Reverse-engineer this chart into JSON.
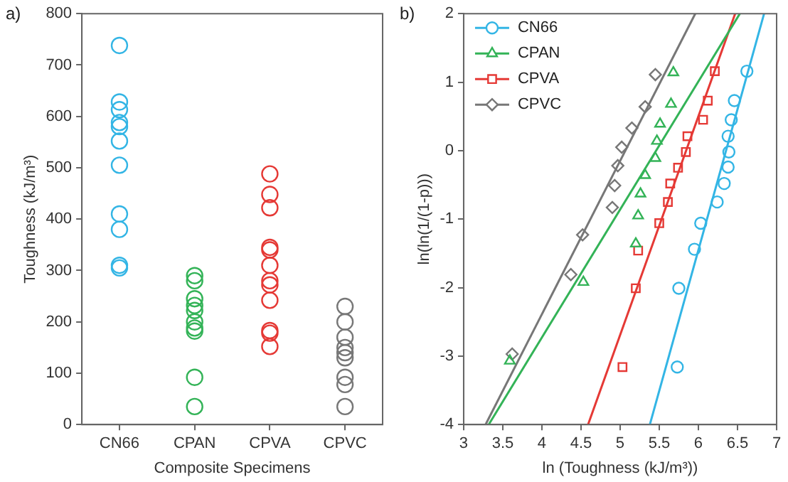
{
  "chart_data": [
    {
      "type": "scatter",
      "annotations": [
        "a)"
      ],
      "xlabel": "Composite Specimens",
      "ylabel": "Toughness (kJ/m³)",
      "categories": [
        "CN66",
        "CPAN",
        "CPVA",
        "CPVC"
      ],
      "ylim": [
        0,
        800
      ],
      "yticks": [
        0,
        100,
        200,
        300,
        400,
        500,
        600,
        700,
        800
      ],
      "grid": false,
      "legend": false,
      "marker": "circle",
      "series": [
        {
          "color": "#33b5e5",
          "x": [
            "CN66",
            "CN66",
            "CN66",
            "CN66",
            "CN66",
            "CN66",
            "CN66",
            "CN66",
            "CN66",
            "CN66",
            "CN66"
          ],
          "values": [
            738,
            628,
            613,
            588,
            580,
            552,
            505,
            410,
            380,
            310,
            305
          ]
        },
        {
          "color": "#33b357",
          "x": [
            "CPAN",
            "CPAN",
            "CPAN",
            "CPAN",
            "CPAN",
            "CPAN",
            "CPAN",
            "CPAN",
            "CPAN",
            "CPAN"
          ],
          "values": [
            290,
            280,
            245,
            232,
            222,
            200,
            188,
            182,
            92,
            35
          ]
        },
        {
          "color": "#e53935",
          "x": [
            "CPVA",
            "CPVA",
            "CPVA",
            "CPVA",
            "CPVA",
            "CPVA",
            "CPVA",
            "CPVA",
            "CPVA",
            "CPVA",
            "CPVA",
            "CPVA"
          ],
          "values": [
            488,
            448,
            422,
            345,
            340,
            310,
            280,
            272,
            242,
            183,
            178,
            152
          ]
        },
        {
          "color": "#777777",
          "x": [
            "CPVC",
            "CPVC",
            "CPVC",
            "CPVC",
            "CPVC",
            "CPVC",
            "CPVC",
            "CPVC",
            "CPVC"
          ],
          "values": [
            230,
            200,
            170,
            150,
            140,
            130,
            92,
            78,
            35
          ]
        }
      ]
    },
    {
      "type": "scatter",
      "annotations": [
        "b)"
      ],
      "xlabel": "ln (Toughness (kJ/m³))",
      "ylabel": "ln(ln(1/(1-p)))",
      "xlim": [
        3,
        7
      ],
      "xticks": [
        3,
        {
          "value": 3.5,
          "label": "3.5"
        },
        4,
        {
          "value": 4.5,
          "label": "4.5"
        },
        5,
        {
          "value": 5.5,
          "label": "5.5"
        },
        6,
        {
          "value": 6.5,
          "label": "6.5"
        },
        7
      ],
      "ylim": [
        -4,
        2
      ],
      "yticks": [
        -4,
        -3,
        -2,
        -1,
        0,
        1,
        2
      ],
      "grid": false,
      "legend": "top left",
      "series": [
        {
          "name": "CN66",
          "color": "#33b5e5",
          "marker": "circle",
          "x": [
            6.62,
            6.46,
            6.42,
            6.38,
            6.39,
            6.38,
            6.33,
            6.24,
            6.03,
            5.95,
            5.75,
            5.73
          ],
          "values": [
            1.16,
            0.73,
            0.45,
            0.21,
            -0.02,
            -0.24,
            -0.48,
            -0.75,
            -1.06,
            -1.44,
            -2.01,
            -3.16
          ]
        },
        {
          "name": "CPAN",
          "color": "#33b357",
          "marker": "triangle",
          "x": [
            5.68,
            5.65,
            5.51,
            5.47,
            5.45,
            5.32,
            5.26,
            5.23,
            5.2,
            4.53,
            3.59
          ],
          "values": [
            1.14,
            0.68,
            0.39,
            0.14,
            -0.11,
            -0.36,
            -0.63,
            -0.95,
            -1.36,
            -1.92,
            -3.07
          ]
        },
        {
          "name": "CPVA",
          "color": "#e53935",
          "marker": "square",
          "x": [
            6.21,
            6.12,
            6.06,
            5.86,
            5.84,
            5.74,
            5.64,
            5.61,
            5.5,
            5.23,
            5.2,
            5.03
          ],
          "values": [
            1.16,
            0.73,
            0.45,
            0.21,
            -0.02,
            -0.25,
            -0.48,
            -0.75,
            -1.06,
            -1.46,
            -2.01,
            -3.16
          ]
        },
        {
          "name": "CPVC",
          "color": "#777777",
          "marker": "diamond",
          "x": [
            5.45,
            5.32,
            5.15,
            5.02,
            4.97,
            4.93,
            4.9,
            4.52,
            4.37,
            3.62
          ],
          "values": [
            1.11,
            0.64,
            0.33,
            0.05,
            -0.22,
            -0.51,
            -0.83,
            -1.23,
            -1.81,
            -2.97
          ]
        },
        {
          "type": "line",
          "color": "#33b5e5",
          "marker": "none",
          "x": [
            5.38,
            6.84
          ],
          "values": [
            -4,
            2
          ]
        },
        {
          "type": "line",
          "color": "#33b357",
          "marker": "none",
          "x": [
            3.32,
            6.53
          ],
          "values": [
            -4,
            2
          ]
        },
        {
          "type": "line",
          "color": "#e53935",
          "marker": "none",
          "x": [
            4.59,
            6.47
          ],
          "values": [
            -4,
            2
          ]
        },
        {
          "type": "line",
          "color": "#777777",
          "marker": "none",
          "x": [
            3.28,
            5.96
          ],
          "values": [
            -4,
            2
          ]
        }
      ]
    }
  ]
}
